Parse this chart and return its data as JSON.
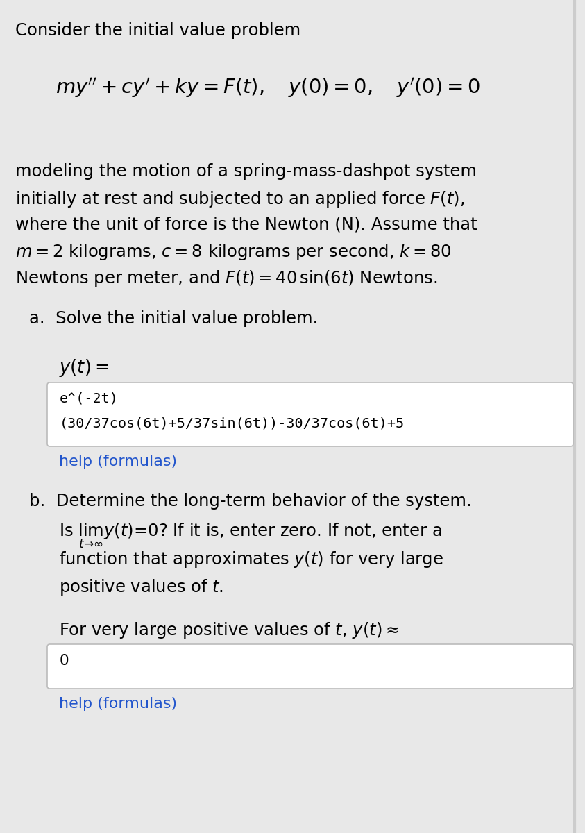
{
  "bg_color": "#e8e8e8",
  "white": "#ffffff",
  "black": "#000000",
  "blue_link": "#2255cc",
  "title_text": "Consider the initial value problem",
  "para_lines": [
    "modeling the motion of a spring-mass-dashpot system",
    "initially at rest and subjected to an applied force $F(t)$,",
    "where the unit of force is the Newton (N). Assume that",
    "$m = 2$ kilograms, $c = 8$ kilograms per second, $k = 80$",
    "Newtons per meter, and $F(t) = 40\\,\\mathrm{sin}(6t)$ Newtons."
  ],
  "part_a_label": "a.  Solve the initial value problem.",
  "yt_label": "$y(t) =$",
  "box_a_line1": "e^(-2t)",
  "box_a_line2": "(30/37cos(6t)+5/37sin(6t))-30/37cos(6t)+5",
  "help_formulas": "help (formulas)",
  "part_b_label": "b.  Determine the long-term behavior of the system.",
  "part_b_line2_plain": "Is ",
  "part_b_line2_math": "$\\lim_{t\\!\\to\\!\\infty} y(t) = 0$",
  "part_b_line2_rest": "? If it is, enter zero. If not, enter a",
  "part_b_line3": "function that approximates $y(t)$ for very large",
  "part_b_line4": "positive values of $t$.",
  "part_b_label2": "For very large positive values of $t$, $y(t) \\approx$",
  "box_b_content": "0"
}
